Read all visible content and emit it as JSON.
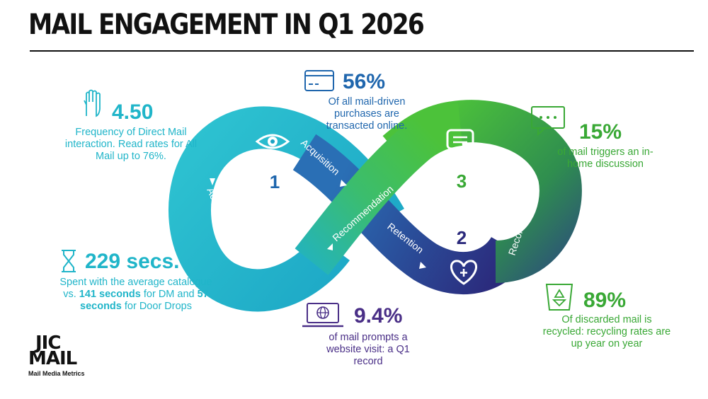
{
  "title": "MAIL ENGAGEMENT IN Q1 2026",
  "diagram": {
    "numbers": [
      "1",
      "2",
      "3"
    ],
    "labels": {
      "acquisition_top": "Acquisition",
      "acquisition_left": "Acquisition",
      "recommendation_center": "Recommendation",
      "retention": "Retention",
      "recommendation_right": "Recommendation"
    }
  },
  "stats": {
    "frequency": {
      "value": "4.50",
      "desc": "Frequency of Direct Mail interaction. Read rates for All Mail up to 76%.",
      "icon": "hand-icon"
    },
    "time": {
      "value": "229 secs.",
      "desc_pre": "Spent with the average catalogue vs.",
      "desc_b1": "141 seconds",
      "desc_mid": "for DM and",
      "desc_b2": "57 seconds",
      "desc_post": "for Door Drops",
      "icon": "hourglass-icon"
    },
    "online": {
      "value": "56%",
      "desc": "Of all mail-driven purchases are transacted online.",
      "icon": "credit-card-icon"
    },
    "discussion": {
      "value": "15%",
      "desc": "of mail triggers an in-home discussion",
      "icon": "chat-bubble-icon"
    },
    "website": {
      "value": "9.4%",
      "desc": "of mail prompts a website visit: a Q1 record",
      "icon": "laptop-globe-icon"
    },
    "recycled": {
      "value": "89%",
      "desc": "Of discarded mail is recycled: recycling rates are up year on year",
      "icon": "recycle-bin-icon"
    }
  },
  "logo": {
    "line1": "JIC",
    "line2": "MAIL",
    "tagline": "Mail Media Metrics"
  },
  "colors": {
    "cyan": "#20b5c9",
    "blue": "#1f66ad",
    "green": "#39a835",
    "purple": "#4a2f87"
  }
}
